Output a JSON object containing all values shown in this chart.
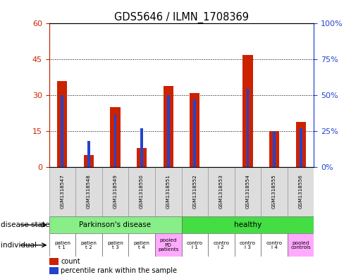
{
  "title": "GDS5646 / ILMN_1708369",
  "samples": [
    "GSM1318547",
    "GSM1318548",
    "GSM1318549",
    "GSM1318550",
    "GSM1318551",
    "GSM1318552",
    "GSM1318553",
    "GSM1318554",
    "GSM1318555",
    "GSM1318556"
  ],
  "count": [
    36,
    5,
    25,
    8,
    34,
    31,
    0,
    47,
    15,
    19
  ],
  "percentile": [
    50,
    18,
    37,
    27,
    50,
    47,
    0,
    55,
    25,
    27
  ],
  "ylim_left": [
    0,
    60
  ],
  "ylim_right": [
    0,
    100
  ],
  "yticks_left": [
    0,
    15,
    30,
    45,
    60
  ],
  "yticks_right": [
    0,
    25,
    50,
    75,
    100
  ],
  "bar_color": "#cc2200",
  "blue_color": "#2244cc",
  "disease_state_groups": [
    {
      "label": "Parkinson's disease",
      "start": 0,
      "end": 5,
      "color": "#88ee88"
    },
    {
      "label": "healthy",
      "start": 5,
      "end": 10,
      "color": "#44dd44"
    }
  ],
  "individual_labels": [
    "patien\nt 1",
    "patien\nt 2",
    "patien\nt 3",
    "patien\nt 4",
    "pooled\nPD\npatients",
    "contro\nl 1",
    "contro\nl 2",
    "contro\nl 3",
    "contro\nl 4",
    "pooled\ncontrols"
  ],
  "individual_colors": [
    "#ffffff",
    "#ffffff",
    "#ffffff",
    "#ffffff",
    "#ffaaff",
    "#ffffff",
    "#ffffff",
    "#ffffff",
    "#ffffff",
    "#ffaaff"
  ],
  "disease_state_label": "disease state",
  "individual_label": "individual",
  "legend_count": "count",
  "legend_percentile": "percentile rank within the sample",
  "bg_color": "#ffffff",
  "plot_bg": "#ffffff",
  "left_axis_color": "#cc2200",
  "right_axis_color": "#2244cc"
}
